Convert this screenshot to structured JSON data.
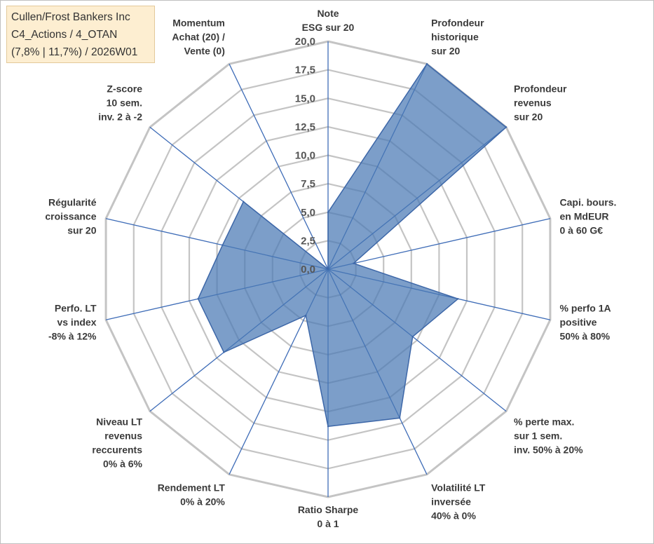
{
  "title_box": {
    "lines": [
      "Cullen/Frost Bankers Inc",
      "C4_Actions / 4_OTAN",
      "(7,8% | 11,7%) / 2026W01"
    ]
  },
  "colors": {
    "fill": "#4a78b4",
    "stroke": "#3d67a8",
    "grid": "#c4c4c4",
    "spoke": "#3e6cb7",
    "title_bg": "#fdeed1"
  },
  "chart_data": {
    "type": "radar",
    "range": [
      0,
      20
    ],
    "ticks": [
      "0,0",
      "2,5",
      "5,0",
      "7,5",
      "10,0",
      "12,5",
      "15,0",
      "17,5",
      "20,0"
    ],
    "grid": true,
    "axes": [
      {
        "label": [
          "Note",
          "ESG sur 20"
        ],
        "value": 5.0
      },
      {
        "label": [
          "Profondeur",
          "historique",
          "sur 20"
        ],
        "value": 20.0
      },
      {
        "label": [
          "Profondeur",
          "revenus",
          "sur 20"
        ],
        "value": 20.0
      },
      {
        "label": [
          "Capi. bours.",
          "en MdEUR",
          "0 à 60 G€"
        ],
        "value": 2.3
      },
      {
        "label": [
          "% perfo 1A",
          "positive",
          "50% à 80%"
        ],
        "value": 11.7
      },
      {
        "label": [
          "% perte max.",
          "sur 1 sem.",
          "inv. 50% à 20%"
        ],
        "value": 9.5
      },
      {
        "label": [
          "Volatilité LT",
          "inversée",
          "40% à 0%"
        ],
        "value": 14.5
      },
      {
        "label": [
          "Ratio Sharpe",
          "0 à 1"
        ],
        "value": 13.8
      },
      {
        "label": [
          "Rendement LT",
          "0% à 20%"
        ],
        "value": 4.5
      },
      {
        "label": [
          "Niveau LT",
          "revenus",
          "reccurents",
          "0% à 6%"
        ],
        "value": 11.7
      },
      {
        "label": [
          "Perfo. LT",
          "vs index",
          "-8% à 12%"
        ],
        "value": 11.7
      },
      {
        "label": [
          "Régularité",
          "croissance",
          "sur 20"
        ],
        "value": 9.5
      },
      {
        "label": [
          "Z-score",
          "10 sem.",
          "inv. 2 à -2"
        ],
        "value": 9.5
      },
      {
        "label": [
          "Momentum",
          "Achat (20) /",
          "Vente (0)"
        ],
        "value": 0.0
      }
    ]
  }
}
